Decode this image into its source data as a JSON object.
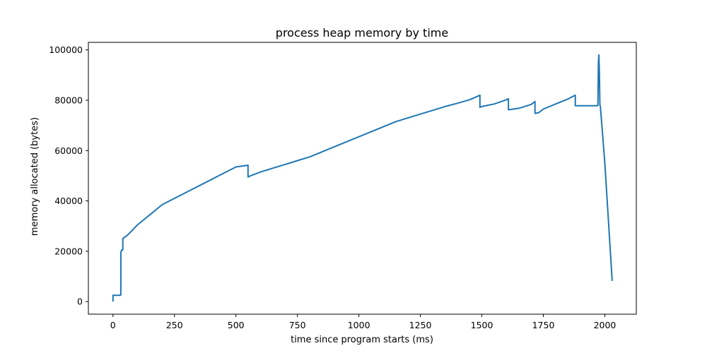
{
  "chart_data": {
    "type": "line",
    "title": "process heap memory by time",
    "xlabel": "time since program starts (ms)",
    "ylabel": "memory allocated (bytes)",
    "xlim": [
      -100,
      2128
    ],
    "ylim": [
      -5000,
      103000
    ],
    "xticks": [
      0,
      250,
      500,
      750,
      1000,
      1250,
      1500,
      1750,
      2000
    ],
    "xtick_labels": [
      "0",
      "250",
      "500",
      "750",
      "1000",
      "1250",
      "1500",
      "1750",
      "2000"
    ],
    "yticks": [
      0,
      20000,
      40000,
      60000,
      80000,
      100000
    ],
    "ytick_labels": [
      "0",
      "20000",
      "40000",
      "60000",
      "80000",
      "100000"
    ],
    "grid": false,
    "color": "#1f77b4",
    "series": [
      {
        "x": [
          0,
          0,
          30,
          30,
          32,
          32,
          35,
          40,
          40,
          60,
          100,
          150,
          200,
          250,
          300,
          350,
          400,
          450,
          500,
          549,
          549,
          560,
          600,
          650,
          700,
          750,
          800,
          850,
          900,
          950,
          1000,
          1050,
          1100,
          1150,
          1200,
          1250,
          1300,
          1350,
          1400,
          1450,
          1492,
          1492,
          1500,
          1550,
          1600,
          1608,
          1608,
          1650,
          1700,
          1716,
          1716,
          1730,
          1750,
          1800,
          1850,
          1875,
          1880,
          1880,
          1900,
          1950,
          1970,
          1972,
          1974,
          1976,
          1978,
          1980,
          1982,
          2000,
          2030
        ],
        "y": [
          0,
          2500,
          2500,
          2700,
          2700,
          19500,
          20500,
          20500,
          25000,
          26500,
          30500,
          34500,
          38500,
          41000,
          43500,
          46000,
          48500,
          51000,
          53500,
          54200,
          49500,
          50000,
          51500,
          53000,
          54500,
          56000,
          57500,
          59500,
          61500,
          63500,
          65500,
          67500,
          69500,
          71500,
          73000,
          74500,
          76000,
          77500,
          78800,
          80200,
          82000,
          77200,
          77500,
          78500,
          80200,
          80600,
          76200,
          76800,
          78300,
          79500,
          74800,
          75000,
          76500,
          78500,
          80500,
          81800,
          82000,
          77800,
          77800,
          77800,
          77800,
          78000,
          95000,
          98000,
          91000,
          78000,
          77500,
          55000,
          8200
        ]
      }
    ]
  }
}
